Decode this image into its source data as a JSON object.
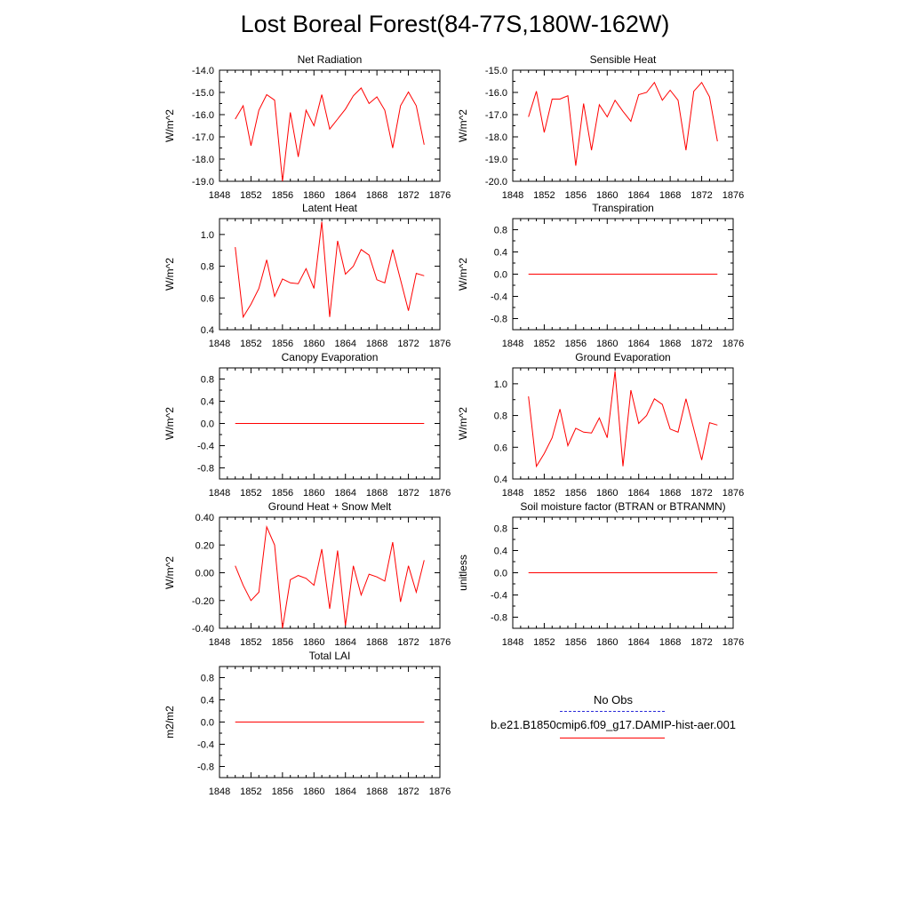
{
  "figure": {
    "title": "Lost Boreal Forest(84-77S,180W-162W)"
  },
  "legend": {
    "obs_label": "No Obs",
    "obs_color": "#2b2bd9",
    "model_label": "b.e21.B1850cmip6.f09_g17.DAMIP-hist-aer.001",
    "model_color": "#ff0000"
  },
  "chart_data": [
    {
      "type": "line",
      "title": "Net Radiation",
      "ylabel": "W/m^2",
      "xlim": [
        1848,
        1876
      ],
      "ylim": [
        -19.0,
        -14.0
      ],
      "xticks": [
        "1848",
        "1852",
        "1856",
        "1860",
        "1864",
        "1868",
        "1872",
        "1876"
      ],
      "yticks": [
        -19.0,
        -18.0,
        -17.0,
        -16.0,
        -15.0,
        -14.0
      ],
      "ytick_labels": [
        "-19.0",
        "-18.0",
        "-17.0",
        "-16.0",
        "-15.0",
        "-14.0"
      ],
      "series": [
        {
          "color": "#ff0000",
          "x": [
            1850,
            1851,
            1852,
            1853,
            1854,
            1855,
            1856,
            1857,
            1858,
            1859,
            1860,
            1861,
            1862,
            1863,
            1864,
            1865,
            1866,
            1867,
            1868,
            1869,
            1870,
            1871,
            1872,
            1873,
            1874
          ],
          "y": [
            -16.2,
            -15.6,
            -17.4,
            -15.8,
            -15.1,
            -15.35,
            -19.0,
            -15.9,
            -17.9,
            -15.8,
            -16.5,
            -15.1,
            -16.65,
            -16.2,
            -15.75,
            -15.15,
            -14.8,
            -15.5,
            -15.2,
            -15.8,
            -17.5,
            -15.6,
            -14.98,
            -15.6,
            -17.35
          ]
        }
      ]
    },
    {
      "type": "line",
      "title": "Sensible Heat",
      "ylabel": "W/m^2",
      "xlim": [
        1848,
        1876
      ],
      "ylim": [
        -20.0,
        -15.0
      ],
      "xticks": [
        "1848",
        "1852",
        "1856",
        "1860",
        "1864",
        "1868",
        "1872",
        "1876"
      ],
      "yticks": [
        -20.0,
        -19.0,
        -18.0,
        -17.0,
        -16.0,
        -15.0
      ],
      "ytick_labels": [
        "-20.0",
        "-19.0",
        "-18.0",
        "-17.0",
        "-16.0",
        "-15.0"
      ],
      "series": [
        {
          "color": "#ff0000",
          "x": [
            1850,
            1851,
            1852,
            1853,
            1854,
            1855,
            1856,
            1857,
            1858,
            1859,
            1860,
            1861,
            1862,
            1863,
            1864,
            1865,
            1866,
            1867,
            1868,
            1869,
            1870,
            1871,
            1872,
            1873,
            1874
          ],
          "y": [
            -17.1,
            -15.95,
            -17.8,
            -16.3,
            -16.3,
            -16.15,
            -19.3,
            -16.5,
            -18.6,
            -16.55,
            -17.1,
            -16.35,
            -16.85,
            -17.3,
            -16.1,
            -16.0,
            -15.55,
            -16.35,
            -15.9,
            -16.35,
            -18.6,
            -15.95,
            -15.55,
            -16.2,
            -18.2
          ]
        }
      ]
    },
    {
      "type": "line",
      "title": "Latent Heat",
      "ylabel": "W/m^2",
      "xlim": [
        1848,
        1876
      ],
      "ylim": [
        0.4,
        1.1
      ],
      "xticks": [
        "1848",
        "1852",
        "1856",
        "1860",
        "1864",
        "1868",
        "1872",
        "1876"
      ],
      "yticks": [
        0.4,
        0.6,
        0.8,
        1.0
      ],
      "ytick_labels": [
        "0.4",
        "0.6",
        "0.8",
        "1.0"
      ],
      "series": [
        {
          "color": "#ff0000",
          "x": [
            1850,
            1851,
            1852,
            1853,
            1854,
            1855,
            1856,
            1857,
            1858,
            1859,
            1860,
            1861,
            1862,
            1863,
            1864,
            1865,
            1866,
            1867,
            1868,
            1869,
            1870,
            1871,
            1872,
            1873,
            1874
          ],
          "y": [
            0.92,
            0.48,
            0.56,
            0.66,
            0.84,
            0.61,
            0.72,
            0.695,
            0.69,
            0.785,
            0.66,
            1.08,
            0.48,
            0.96,
            0.75,
            0.8,
            0.905,
            0.87,
            0.715,
            0.695,
            0.905,
            0.715,
            0.52,
            0.755,
            0.74
          ]
        }
      ]
    },
    {
      "type": "line",
      "title": "Transpiration",
      "ylabel": "W/m^2",
      "xlim": [
        1848,
        1876
      ],
      "ylim": [
        -1.0,
        1.0
      ],
      "xticks": [
        "1848",
        "1852",
        "1856",
        "1860",
        "1864",
        "1868",
        "1872",
        "1876"
      ],
      "yticks": [
        -0.8,
        -0.4,
        0.0,
        0.4,
        0.8
      ],
      "ytick_labels": [
        "-0.8",
        "-0.4",
        "0.0",
        "0.4",
        "0.8"
      ],
      "series": [
        {
          "color": "#ff0000",
          "x": [
            1850,
            1874
          ],
          "y": [
            0.0,
            0.0
          ]
        }
      ]
    },
    {
      "type": "line",
      "title": "Canopy Evaporation",
      "ylabel": "W/m^2",
      "xlim": [
        1848,
        1876
      ],
      "ylim": [
        -1.0,
        1.0
      ],
      "xticks": [
        "1848",
        "1852",
        "1856",
        "1860",
        "1864",
        "1868",
        "1872",
        "1876"
      ],
      "yticks": [
        -0.8,
        -0.4,
        0.0,
        0.4,
        0.8
      ],
      "ytick_labels": [
        "-0.8",
        "-0.4",
        "0.0",
        "0.4",
        "0.8"
      ],
      "series": [
        {
          "color": "#ff0000",
          "x": [
            1850,
            1874
          ],
          "y": [
            0.0,
            0.0
          ]
        }
      ]
    },
    {
      "type": "line",
      "title": "Ground Evaporation",
      "ylabel": "W/m^2",
      "xlim": [
        1848,
        1876
      ],
      "ylim": [
        0.4,
        1.1
      ],
      "xticks": [
        "1848",
        "1852",
        "1856",
        "1860",
        "1864",
        "1868",
        "1872",
        "1876"
      ],
      "yticks": [
        0.4,
        0.6,
        0.8,
        1.0
      ],
      "ytick_labels": [
        "0.4",
        "0.6",
        "0.8",
        "1.0"
      ],
      "series": [
        {
          "color": "#ff0000",
          "x": [
            1850,
            1851,
            1852,
            1853,
            1854,
            1855,
            1856,
            1857,
            1858,
            1859,
            1860,
            1861,
            1862,
            1863,
            1864,
            1865,
            1866,
            1867,
            1868,
            1869,
            1870,
            1871,
            1872,
            1873,
            1874
          ],
          "y": [
            0.92,
            0.48,
            0.56,
            0.66,
            0.84,
            0.61,
            0.72,
            0.695,
            0.69,
            0.785,
            0.66,
            1.08,
            0.48,
            0.96,
            0.75,
            0.8,
            0.905,
            0.87,
            0.715,
            0.695,
            0.905,
            0.715,
            0.52,
            0.755,
            0.74
          ]
        }
      ]
    },
    {
      "type": "line",
      "title": "Ground Heat + Snow Melt",
      "ylabel": "W/m^2",
      "xlim": [
        1848,
        1876
      ],
      "ylim": [
        -0.4,
        0.4
      ],
      "xticks": [
        "1848",
        "1852",
        "1856",
        "1860",
        "1864",
        "1868",
        "1872",
        "1876"
      ],
      "yticks": [
        -0.4,
        -0.2,
        0.0,
        0.2,
        0.4
      ],
      "ytick_labels": [
        "-0.40",
        "-0.20",
        "0.00",
        "0.20",
        "0.40"
      ],
      "series": [
        {
          "color": "#ff0000",
          "x": [
            1850,
            1851,
            1852,
            1853,
            1854,
            1855,
            1856,
            1857,
            1858,
            1859,
            1860,
            1861,
            1862,
            1863,
            1864,
            1865,
            1866,
            1867,
            1868,
            1869,
            1870,
            1871,
            1872,
            1873,
            1874
          ],
          "y": [
            0.05,
            -0.09,
            -0.2,
            -0.14,
            0.33,
            0.2,
            -0.4,
            -0.05,
            -0.02,
            -0.04,
            -0.09,
            0.17,
            -0.26,
            0.16,
            -0.38,
            0.05,
            -0.16,
            -0.01,
            -0.03,
            -0.06,
            0.22,
            -0.21,
            0.05,
            -0.14,
            0.09
          ]
        }
      ]
    },
    {
      "type": "line",
      "title": "Soil moisture factor (BTRAN or BTRANMN)",
      "ylabel": "unitless",
      "xlim": [
        1848,
        1876
      ],
      "ylim": [
        -1.0,
        1.0
      ],
      "xticks": [
        "1848",
        "1852",
        "1856",
        "1860",
        "1864",
        "1868",
        "1872",
        "1876"
      ],
      "yticks": [
        -0.8,
        -0.4,
        0.0,
        0.4,
        0.8
      ],
      "ytick_labels": [
        "-0.8",
        "-0.4",
        "0.0",
        "0.4",
        "0.8"
      ],
      "series": [
        {
          "color": "#ff0000",
          "x": [
            1850,
            1874
          ],
          "y": [
            0.0,
            0.0
          ]
        }
      ]
    },
    {
      "type": "line",
      "title": "Total LAI",
      "ylabel": "m2/m2",
      "xlim": [
        1848,
        1876
      ],
      "ylim": [
        -1.0,
        1.0
      ],
      "xticks": [
        "1848",
        "1852",
        "1856",
        "1860",
        "1864",
        "1868",
        "1872",
        "1876"
      ],
      "yticks": [
        -0.8,
        -0.4,
        0.0,
        0.4,
        0.8
      ],
      "ytick_labels": [
        "-0.8",
        "-0.4",
        "0.0",
        "0.4",
        "0.8"
      ],
      "series": [
        {
          "color": "#ff0000",
          "x": [
            1850,
            1874
          ],
          "y": [
            0.0,
            0.0
          ]
        }
      ]
    }
  ]
}
